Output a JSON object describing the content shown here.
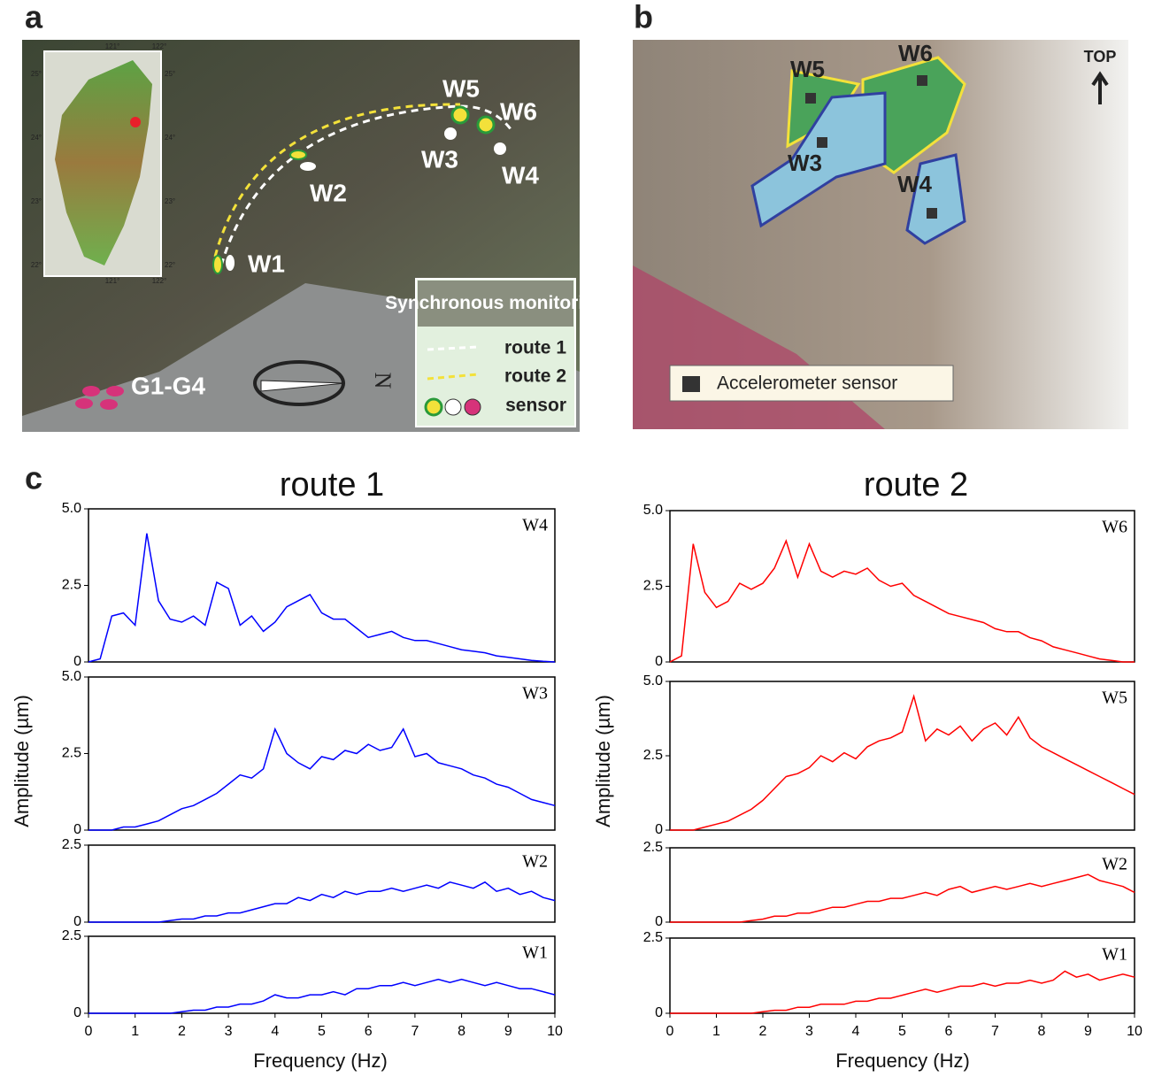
{
  "panel_a": {
    "label": "a",
    "sites": [
      "W1",
      "W2",
      "W3",
      "W4",
      "W5",
      "W6"
    ],
    "ground": "G1-G4",
    "north": "N",
    "legend": {
      "title": "Synchronous monitoring",
      "items": [
        "route 1",
        "route 2",
        "sensor"
      ]
    },
    "inset_map": {
      "top_ticks": [
        "121°",
        "122°"
      ],
      "bottom_ticks": [
        "121°",
        "122°"
      ],
      "left_ticks": [
        "25°",
        "24°",
        "23°",
        "22°"
      ],
      "right_ticks": [
        "25°",
        "24°",
        "23°",
        "22°"
      ]
    }
  },
  "panel_b": {
    "label": "b",
    "blocks": [
      "W5",
      "W6",
      "W3",
      "W4"
    ],
    "orientation": "TOP",
    "legend": "Accelerometer sensor"
  },
  "panel_c": {
    "label": "c",
    "column_titles": [
      "route 1",
      "route 2"
    ],
    "y_label": "Amplitude (µm)",
    "x_label": "Frequency (Hz)"
  },
  "chart_data": [
    {
      "type": "line",
      "xlim": [
        0,
        10
      ],
      "ylim": [
        0,
        5
      ],
      "yticks": [
        0,
        2.5,
        {
          "value": 5,
          "label": "5.0"
        }
      ],
      "x": [
        0,
        0.25,
        0.5,
        0.75,
        1,
        1.25,
        1.5,
        1.75,
        2,
        2.25,
        2.5,
        2.75,
        3,
        3.25,
        3.5,
        3.75,
        4,
        4.25,
        4.5,
        4.75,
        5,
        5.25,
        5.5,
        5.75,
        6,
        6.25,
        6.5,
        6.75,
        7,
        7.25,
        7.5,
        7.75,
        8,
        8.25,
        8.5,
        8.75,
        9,
        9.25,
        9.5,
        9.75,
        10
      ],
      "series": [
        {
          "name": "W4",
          "color": "#0000ff",
          "values": [
            0,
            0.1,
            1.5,
            1.6,
            1.2,
            4.2,
            2.0,
            1.4,
            1.3,
            1.5,
            1.2,
            2.6,
            2.4,
            1.2,
            1.5,
            1.0,
            1.3,
            1.8,
            2.0,
            2.2,
            1.6,
            1.4,
            1.4,
            1.1,
            0.8,
            0.9,
            1.0,
            0.8,
            0.7,
            0.7,
            0.6,
            0.5,
            0.4,
            0.35,
            0.3,
            0.2,
            0.15,
            0.1,
            0.05,
            0.02,
            0
          ]
        }
      ]
    },
    {
      "type": "line",
      "xlim": [
        0,
        10
      ],
      "ylim": [
        0,
        5
      ],
      "yticks": [
        0,
        2.5,
        {
          "value": 5,
          "label": "5.0"
        }
      ],
      "x": [
        0,
        0.25,
        0.5,
        0.75,
        1,
        1.25,
        1.5,
        1.75,
        2,
        2.25,
        2.5,
        2.75,
        3,
        3.25,
        3.5,
        3.75,
        4,
        4.25,
        4.5,
        4.75,
        5,
        5.25,
        5.5,
        5.75,
        6,
        6.25,
        6.5,
        6.75,
        7,
        7.25,
        7.5,
        7.75,
        8,
        8.25,
        8.5,
        8.75,
        9,
        9.25,
        9.5,
        9.75,
        10
      ],
      "series": [
        {
          "name": "W3",
          "color": "#0000ff",
          "values": [
            0,
            0,
            0,
            0.1,
            0.1,
            0.2,
            0.3,
            0.5,
            0.7,
            0.8,
            1.0,
            1.2,
            1.5,
            1.8,
            1.7,
            2.0,
            3.3,
            2.5,
            2.2,
            2.0,
            2.4,
            2.3,
            2.6,
            2.5,
            2.8,
            2.6,
            2.7,
            3.3,
            2.4,
            2.5,
            2.2,
            2.1,
            2.0,
            1.8,
            1.7,
            1.5,
            1.4,
            1.2,
            1.0,
            0.9,
            0.8
          ]
        }
      ]
    },
    {
      "type": "line",
      "xlim": [
        0,
        10
      ],
      "ylim": [
        0,
        2.5
      ],
      "yticks": [
        0,
        2.5
      ],
      "x": [
        0,
        0.25,
        0.5,
        0.75,
        1,
        1.25,
        1.5,
        1.75,
        2,
        2.25,
        2.5,
        2.75,
        3,
        3.25,
        3.5,
        3.75,
        4,
        4.25,
        4.5,
        4.75,
        5,
        5.25,
        5.5,
        5.75,
        6,
        6.25,
        6.5,
        6.75,
        7,
        7.25,
        7.5,
        7.75,
        8,
        8.25,
        8.5,
        8.75,
        9,
        9.25,
        9.5,
        9.75,
        10
      ],
      "series": [
        {
          "name": "W2",
          "color": "#0000ff",
          "values": [
            0,
            0,
            0,
            0,
            0,
            0,
            0,
            0.05,
            0.1,
            0.1,
            0.2,
            0.2,
            0.3,
            0.3,
            0.4,
            0.5,
            0.6,
            0.6,
            0.8,
            0.7,
            0.9,
            0.8,
            1.0,
            0.9,
            1.0,
            1.0,
            1.1,
            1.0,
            1.1,
            1.2,
            1.1,
            1.3,
            1.2,
            1.1,
            1.3,
            1.0,
            1.1,
            0.9,
            1.0,
            0.8,
            0.7
          ]
        }
      ]
    },
    {
      "type": "line",
      "xlim": [
        0,
        10
      ],
      "ylim": [
        0,
        2.5
      ],
      "yticks": [
        0,
        2.5
      ],
      "xticks": [
        0,
        1,
        2,
        3,
        4,
        5,
        6,
        7,
        8,
        9,
        10
      ],
      "x": [
        0,
        0.25,
        0.5,
        0.75,
        1,
        1.25,
        1.5,
        1.75,
        2,
        2.25,
        2.5,
        2.75,
        3,
        3.25,
        3.5,
        3.75,
        4,
        4.25,
        4.5,
        4.75,
        5,
        5.25,
        5.5,
        5.75,
        6,
        6.25,
        6.5,
        6.75,
        7,
        7.25,
        7.5,
        7.75,
        8,
        8.25,
        8.5,
        8.75,
        9,
        9.25,
        9.5,
        9.75,
        10
      ],
      "series": [
        {
          "name": "W1",
          "color": "#0000ff",
          "values": [
            0,
            0,
            0,
            0,
            0,
            0,
            0,
            0,
            0.05,
            0.1,
            0.1,
            0.2,
            0.2,
            0.3,
            0.3,
            0.4,
            0.6,
            0.5,
            0.5,
            0.6,
            0.6,
            0.7,
            0.6,
            0.8,
            0.8,
            0.9,
            0.9,
            1.0,
            0.9,
            1.0,
            1.1,
            1.0,
            1.1,
            1.0,
            0.9,
            1.0,
            0.9,
            0.8,
            0.8,
            0.7,
            0.6
          ]
        }
      ]
    },
    {
      "type": "line",
      "xlim": [
        0,
        10
      ],
      "ylim": [
        0,
        5
      ],
      "yticks": [
        0,
        2.5,
        {
          "value": 5,
          "label": "5.0"
        }
      ],
      "x": [
        0,
        0.25,
        0.5,
        0.75,
        1,
        1.25,
        1.5,
        1.75,
        2,
        2.25,
        2.5,
        2.75,
        3,
        3.25,
        3.5,
        3.75,
        4,
        4.25,
        4.5,
        4.75,
        5,
        5.25,
        5.5,
        5.75,
        6,
        6.25,
        6.5,
        6.75,
        7,
        7.25,
        7.5,
        7.75,
        8,
        8.25,
        8.5,
        8.75,
        9,
        9.25,
        9.5,
        9.75,
        10
      ],
      "series": [
        {
          "name": "W6",
          "color": "#ff0000",
          "values": [
            0,
            0.2,
            3.9,
            2.3,
            1.8,
            2.0,
            2.6,
            2.4,
            2.6,
            3.1,
            4.0,
            2.8,
            3.9,
            3.0,
            2.8,
            3.0,
            2.9,
            3.1,
            2.7,
            2.5,
            2.6,
            2.2,
            2.0,
            1.8,
            1.6,
            1.5,
            1.4,
            1.3,
            1.1,
            1.0,
            1.0,
            0.8,
            0.7,
            0.5,
            0.4,
            0.3,
            0.2,
            0.1,
            0.05,
            0,
            0
          ]
        }
      ]
    },
    {
      "type": "line",
      "xlim": [
        0,
        10
      ],
      "ylim": [
        0,
        5
      ],
      "yticks": [
        0,
        2.5,
        {
          "value": 5,
          "label": "5.0"
        }
      ],
      "x": [
        0,
        0.25,
        0.5,
        0.75,
        1,
        1.25,
        1.5,
        1.75,
        2,
        2.25,
        2.5,
        2.75,
        3,
        3.25,
        3.5,
        3.75,
        4,
        4.25,
        4.5,
        4.75,
        5,
        5.25,
        5.5,
        5.75,
        6,
        6.25,
        6.5,
        6.75,
        7,
        7.25,
        7.5,
        7.75,
        8,
        8.25,
        8.5,
        8.75,
        9,
        9.25,
        9.5,
        9.75,
        10
      ],
      "series": [
        {
          "name": "W5",
          "color": "#ff0000",
          "values": [
            0,
            0,
            0,
            0.1,
            0.2,
            0.3,
            0.5,
            0.7,
            1.0,
            1.4,
            1.8,
            1.9,
            2.1,
            2.5,
            2.3,
            2.6,
            2.4,
            2.8,
            3.0,
            3.1,
            3.3,
            4.5,
            3.0,
            3.4,
            3.2,
            3.5,
            3.0,
            3.4,
            3.6,
            3.2,
            3.8,
            3.1,
            2.8,
            2.6,
            2.4,
            2.2,
            2.0,
            1.8,
            1.6,
            1.4,
            1.2
          ]
        }
      ]
    },
    {
      "type": "line",
      "xlim": [
        0,
        10
      ],
      "ylim": [
        0,
        2.5
      ],
      "yticks": [
        0,
        2.5
      ],
      "x": [
        0,
        0.25,
        0.5,
        0.75,
        1,
        1.25,
        1.5,
        1.75,
        2,
        2.25,
        2.5,
        2.75,
        3,
        3.25,
        3.5,
        3.75,
        4,
        4.25,
        4.5,
        4.75,
        5,
        5.25,
        5.5,
        5.75,
        6,
        6.25,
        6.5,
        6.75,
        7,
        7.25,
        7.5,
        7.75,
        8,
        8.25,
        8.5,
        8.75,
        9,
        9.25,
        9.5,
        9.75,
        10
      ],
      "series": [
        {
          "name": "W2",
          "color": "#ff0000",
          "values": [
            0,
            0,
            0,
            0,
            0,
            0,
            0,
            0.05,
            0.1,
            0.2,
            0.2,
            0.3,
            0.3,
            0.4,
            0.5,
            0.5,
            0.6,
            0.7,
            0.7,
            0.8,
            0.8,
            0.9,
            1.0,
            0.9,
            1.1,
            1.2,
            1.0,
            1.1,
            1.2,
            1.1,
            1.2,
            1.3,
            1.2,
            1.3,
            1.4,
            1.5,
            1.6,
            1.4,
            1.3,
            1.2,
            1.0
          ]
        }
      ]
    },
    {
      "type": "line",
      "xlim": [
        0,
        10
      ],
      "ylim": [
        0,
        2.5
      ],
      "yticks": [
        0,
        2.5
      ],
      "xticks": [
        0,
        1,
        2,
        3,
        4,
        5,
        6,
        7,
        8,
        9,
        10
      ],
      "x": [
        0,
        0.25,
        0.5,
        0.75,
        1,
        1.25,
        1.5,
        1.75,
        2,
        2.25,
        2.5,
        2.75,
        3,
        3.25,
        3.5,
        3.75,
        4,
        4.25,
        4.5,
        4.75,
        5,
        5.25,
        5.5,
        5.75,
        6,
        6.25,
        6.5,
        6.75,
        7,
        7.25,
        7.5,
        7.75,
        8,
        8.25,
        8.5,
        8.75,
        9,
        9.25,
        9.5,
        9.75,
        10
      ],
      "series": [
        {
          "name": "W1",
          "color": "#ff0000",
          "values": [
            0,
            0,
            0,
            0,
            0,
            0,
            0,
            0,
            0.05,
            0.1,
            0.1,
            0.2,
            0.2,
            0.3,
            0.3,
            0.3,
            0.4,
            0.4,
            0.5,
            0.5,
            0.6,
            0.7,
            0.8,
            0.7,
            0.8,
            0.9,
            0.9,
            1.0,
            0.9,
            1.0,
            1.0,
            1.1,
            1.0,
            1.1,
            1.4,
            1.2,
            1.3,
            1.1,
            1.2,
            1.3,
            1.2
          ]
        }
      ]
    }
  ]
}
